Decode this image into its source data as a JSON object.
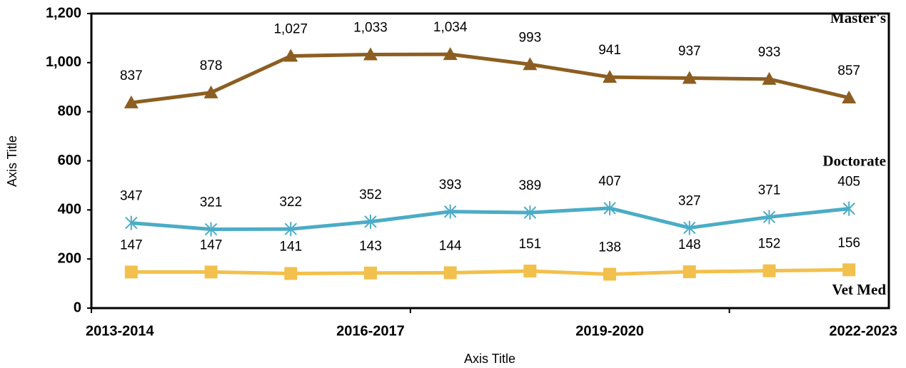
{
  "chart_data": {
    "type": "line",
    "x_label": "Axis Title",
    "y_label": "Axis Title",
    "categories": [
      "2013-2014",
      null,
      null,
      "2016-2017",
      null,
      null,
      "2019-2020",
      null,
      null,
      "2022-2023"
    ],
    "series": [
      {
        "name": "Master's",
        "color": "#8c5e21",
        "marker": "triangle",
        "values": [
          837,
          878,
          1027,
          1033,
          1034,
          993,
          941,
          937,
          933,
          857
        ],
        "value_labels": [
          "837",
          "878",
          "1,027",
          "1,033",
          "1,034",
          "993",
          "941",
          "937",
          "933",
          "857"
        ]
      },
      {
        "name": "Doctorate",
        "color": "#4bacc6",
        "marker": "asterisk",
        "values": [
          347,
          321,
          322,
          352,
          393,
          389,
          407,
          327,
          371,
          405
        ]
      },
      {
        "name": "Vet Med",
        "color": "#f2c04c",
        "marker": "square",
        "values": [
          147,
          147,
          141,
          143,
          144,
          151,
          138,
          148,
          152,
          156
        ]
      }
    ],
    "ylim": [
      0,
      1200
    ],
    "yticks": [
      0,
      200,
      400,
      600,
      800,
      {
        "value": 1000,
        "label": "1,000"
      },
      {
        "value": 1200,
        "label": "1,200"
      }
    ],
    "grid": false
  }
}
